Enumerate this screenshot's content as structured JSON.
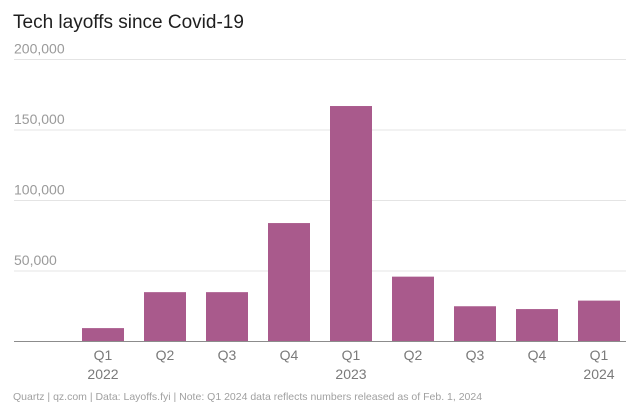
{
  "title": "Tech layoffs since Covid-19",
  "footer": "Quartz | qz.com | Data: Layoffs.fyi | Note: Q1 2024 data reflects numbers released as of Feb. 1, 2024",
  "colors": {
    "bar": "#a95a8c",
    "grid": "#e4e4e4",
    "baseline": "#8c8c8c"
  },
  "chart_data": {
    "type": "bar",
    "title": "Tech layoffs since Covid-19",
    "xlabel": "",
    "ylabel": "",
    "categories": [
      "Q1 2022",
      "Q2 2022",
      "Q3 2022",
      "Q4 2022",
      "Q1 2023",
      "Q2 2023",
      "Q3 2023",
      "Q4 2023",
      "Q1 2024"
    ],
    "values": [
      9500,
      35000,
      35000,
      84000,
      167000,
      46000,
      25000,
      23000,
      29000
    ],
    "x_tick_labels": [
      {
        "quarter": "Q1",
        "year": "2022"
      },
      {
        "quarter": "Q2",
        "year": ""
      },
      {
        "quarter": "Q3",
        "year": ""
      },
      {
        "quarter": "Q4",
        "year": ""
      },
      {
        "quarter": "Q1",
        "year": "2023"
      },
      {
        "quarter": "Q2",
        "year": ""
      },
      {
        "quarter": "Q3",
        "year": ""
      },
      {
        "quarter": "Q4",
        "year": ""
      },
      {
        "quarter": "Q1",
        "year": "2024"
      }
    ],
    "y_ticks": [
      {
        "value": 50000,
        "label": "50,000"
      },
      {
        "value": 100000,
        "label": "100,000"
      },
      {
        "value": 150000,
        "label": "150,000"
      },
      {
        "value": 200000,
        "label": "200,000"
      }
    ],
    "ylim": [
      0,
      200000
    ],
    "grid": true,
    "legend": "none"
  }
}
